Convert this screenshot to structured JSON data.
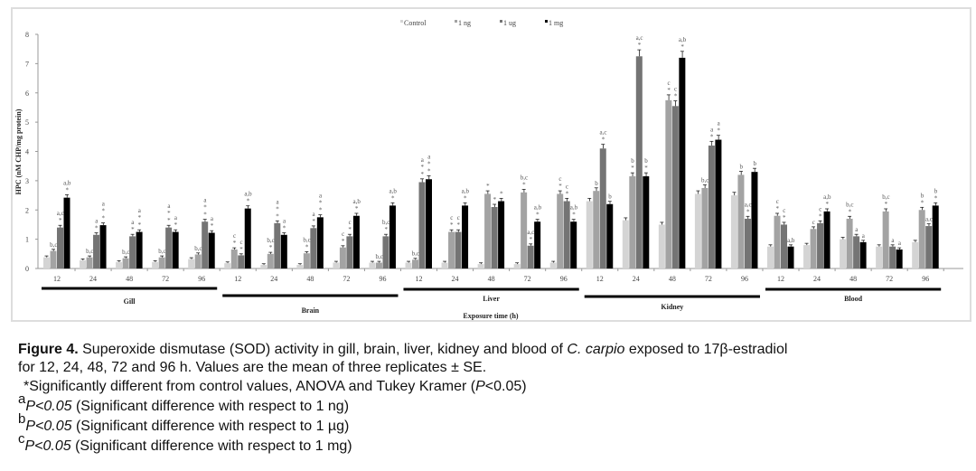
{
  "chart_data": {
    "type": "bar",
    "ylabel": "HPC (nM CHP/mg protein)",
    "xlabel": "Exposure time (h)",
    "ylim": [
      0,
      8
    ],
    "yticks": [
      "0",
      "1",
      "2",
      "3",
      "4",
      "5",
      "6",
      "7",
      "8"
    ],
    "grid": false,
    "legend_position": "top-center",
    "series_names": [
      "Control",
      "1 ng",
      "1 ug",
      "1 mg"
    ],
    "series_colors": [
      "#d4d4d4",
      "#a3a3a3",
      "#747474",
      "#000000"
    ],
    "groups": [
      {
        "organ": "Gill",
        "times": [
          "12",
          "24",
          "48",
          "72",
          "96"
        ],
        "values": [
          [
            0.38,
            0.6,
            1.4,
            2.42
          ],
          [
            0.28,
            0.38,
            1.15,
            1.48
          ],
          [
            0.22,
            0.35,
            1.1,
            1.25
          ],
          [
            0.22,
            0.38,
            1.4,
            1.25
          ],
          [
            0.32,
            0.48,
            1.6,
            1.22
          ]
        ],
        "annotations": [
          [
            [],
            [
              "b,c"
            ],
            [
              "a,c",
              "*"
            ],
            [
              "a,b",
              "*"
            ]
          ],
          [
            [],
            [
              "b,c"
            ],
            [
              "a",
              "*"
            ],
            [
              "a",
              "*",
              "*"
            ]
          ],
          [
            [],
            [
              "b,c"
            ],
            [
              "a",
              "*"
            ],
            [
              "a",
              "*",
              "*"
            ]
          ],
          [
            [],
            [
              "b,c"
            ],
            [
              "a",
              "*",
              "*"
            ],
            [
              "a",
              "*"
            ]
          ],
          [
            [],
            [
              "b,c"
            ],
            [
              "a",
              "*",
              "*"
            ],
            [
              "a",
              "*"
            ]
          ]
        ]
      },
      {
        "organ": "Brain",
        "times": [
          "12",
          "24",
          "48",
          "72",
          "96"
        ],
        "values": [
          [
            0.18,
            0.65,
            0.45,
            2.05
          ],
          [
            0.12,
            0.5,
            1.55,
            1.15
          ],
          [
            0.12,
            0.52,
            1.38,
            1.75
          ],
          [
            0.2,
            0.72,
            1.1,
            1.8
          ],
          [
            0.2,
            0.2,
            1.1,
            2.15
          ]
        ],
        "annotations": [
          [
            [],
            [
              "c",
              "*"
            ],
            [
              "c",
              "*"
            ],
            [
              "a,b",
              "*"
            ]
          ],
          [
            [],
            [
              "b,c",
              "*"
            ],
            [
              "a",
              "*",
              "*"
            ],
            [
              "a",
              "*"
            ]
          ],
          [
            [],
            [
              "b,c",
              "*"
            ],
            [
              "a",
              "*"
            ],
            [
              "a",
              "*",
              "*"
            ]
          ],
          [
            [],
            [
              "c",
              "*"
            ],
            [
              "c",
              "*"
            ],
            [
              "a,b",
              "*"
            ]
          ],
          [
            [],
            [
              "b,c"
            ],
            [
              "b,c",
              "*"
            ],
            [
              "a,b",
              "*"
            ]
          ]
        ]
      },
      {
        "organ": "Liver",
        "times": [
          "12",
          "24",
          "48",
          "72",
          "96"
        ],
        "values": [
          [
            0.2,
            0.3,
            2.95,
            3.05
          ],
          [
            0.2,
            1.25,
            1.25,
            2.15
          ],
          [
            0.15,
            2.55,
            2.1,
            2.3
          ],
          [
            0.15,
            2.6,
            0.78,
            1.6
          ],
          [
            0.2,
            2.55,
            2.3,
            1.6
          ]
        ],
        "annotations": [
          [
            [],
            [
              "b,c"
            ],
            [
              "a",
              "*",
              "*"
            ],
            [
              "a",
              "*",
              "*"
            ]
          ],
          [
            [],
            [
              "c",
              "*"
            ],
            [
              "c",
              "*"
            ],
            [
              "a,b",
              "*"
            ]
          ],
          [
            [],
            [
              "*"
            ],
            [
              "*"
            ],
            [
              "*"
            ]
          ],
          [
            [],
            [
              "b,c",
              "*"
            ],
            [
              "a,c",
              "*"
            ],
            [
              "a,b",
              "*"
            ]
          ],
          [
            [],
            [
              "c",
              "*"
            ],
            [
              "c",
              "*"
            ],
            [
              "a,b",
              "*"
            ]
          ]
        ]
      },
      {
        "organ": "Kidney",
        "times": [
          "12",
          "24",
          "48",
          "72",
          "96"
        ],
        "values": [
          [
            2.3,
            2.65,
            4.1,
            2.2
          ],
          [
            1.65,
            3.15,
            7.25,
            3.15
          ],
          [
            1.5,
            5.75,
            5.55,
            7.2
          ],
          [
            2.55,
            2.75,
            4.2,
            4.4
          ],
          [
            2.5,
            3.2,
            1.7,
            3.3
          ]
        ],
        "annotations": [
          [
            [],
            [
              "b"
            ],
            [
              "a,c",
              "*"
            ],
            [
              "b"
            ]
          ],
          [
            [],
            [
              "b",
              "*"
            ],
            [
              "a,c",
              "*"
            ],
            [
              "b",
              "*"
            ]
          ],
          [
            [],
            [
              "c",
              "*"
            ],
            [
              "c",
              "*"
            ],
            [
              "a,b",
              "*"
            ]
          ],
          [
            [],
            [
              "b,c"
            ],
            [
              "a",
              "*"
            ],
            [
              "a",
              "*"
            ]
          ],
          [
            [],
            [
              "b"
            ],
            [
              "a,c",
              "*"
            ],
            [
              "b"
            ]
          ]
        ]
      },
      {
        "organ": "Blood",
        "times": [
          "12",
          "24",
          "48",
          "72",
          "96"
        ],
        "values": [
          [
            0.75,
            1.8,
            1.5,
            0.75
          ],
          [
            0.8,
            1.35,
            1.55,
            1.95
          ],
          [
            1.0,
            1.7,
            1.1,
            0.9
          ],
          [
            0.75,
            1.95,
            0.75,
            0.65
          ],
          [
            0.9,
            2.0,
            1.45,
            2.15
          ]
        ],
        "annotations": [
          [
            [],
            [
              "c",
              "*"
            ],
            [
              "c",
              "*"
            ],
            [
              "a,b"
            ]
          ],
          [
            [],
            [
              "c"
            ],
            [
              "c",
              "*"
            ],
            [
              "a,b",
              "*"
            ]
          ],
          [
            [],
            [
              "b,c",
              "*"
            ],
            [
              "a"
            ],
            [
              "a"
            ]
          ],
          [
            [],
            [
              "b,c",
              "*"
            ],
            [
              "a"
            ],
            [
              "a"
            ]
          ],
          [
            [],
            [
              "b",
              "*"
            ],
            [
              "a,c"
            ],
            [
              "b",
              "*"
            ]
          ]
        ]
      }
    ]
  },
  "caption": {
    "figure_label": "Figure 4.",
    "line1": " Superoxide dismutase (SOD) activity in gill, brain, liver, kidney and blood of ",
    "species": "C. carpio",
    "line1_end": " exposed to 17β-estradiol",
    "line2": "for 12, 24, 48, 72 and 96 h. Values are the mean of three replicates ± SE.",
    "line3_start": "*Significantly different from control values, ANOVA and Tukey Kramer (",
    "line3_p": "P",
    "line3_end": "<0.05)",
    "notes": [
      {
        "mark": "a",
        "p": "P<0.05",
        "text": " (Significant difference with respect to 1 ng)"
      },
      {
        "mark": "b",
        "p": "P<0.05",
        "text": " (Significant difference with respect to 1 µg)"
      },
      {
        "mark": "c",
        "p": "P<0.05",
        "text": " (Significant difference with respect to 1 mg)"
      }
    ]
  }
}
